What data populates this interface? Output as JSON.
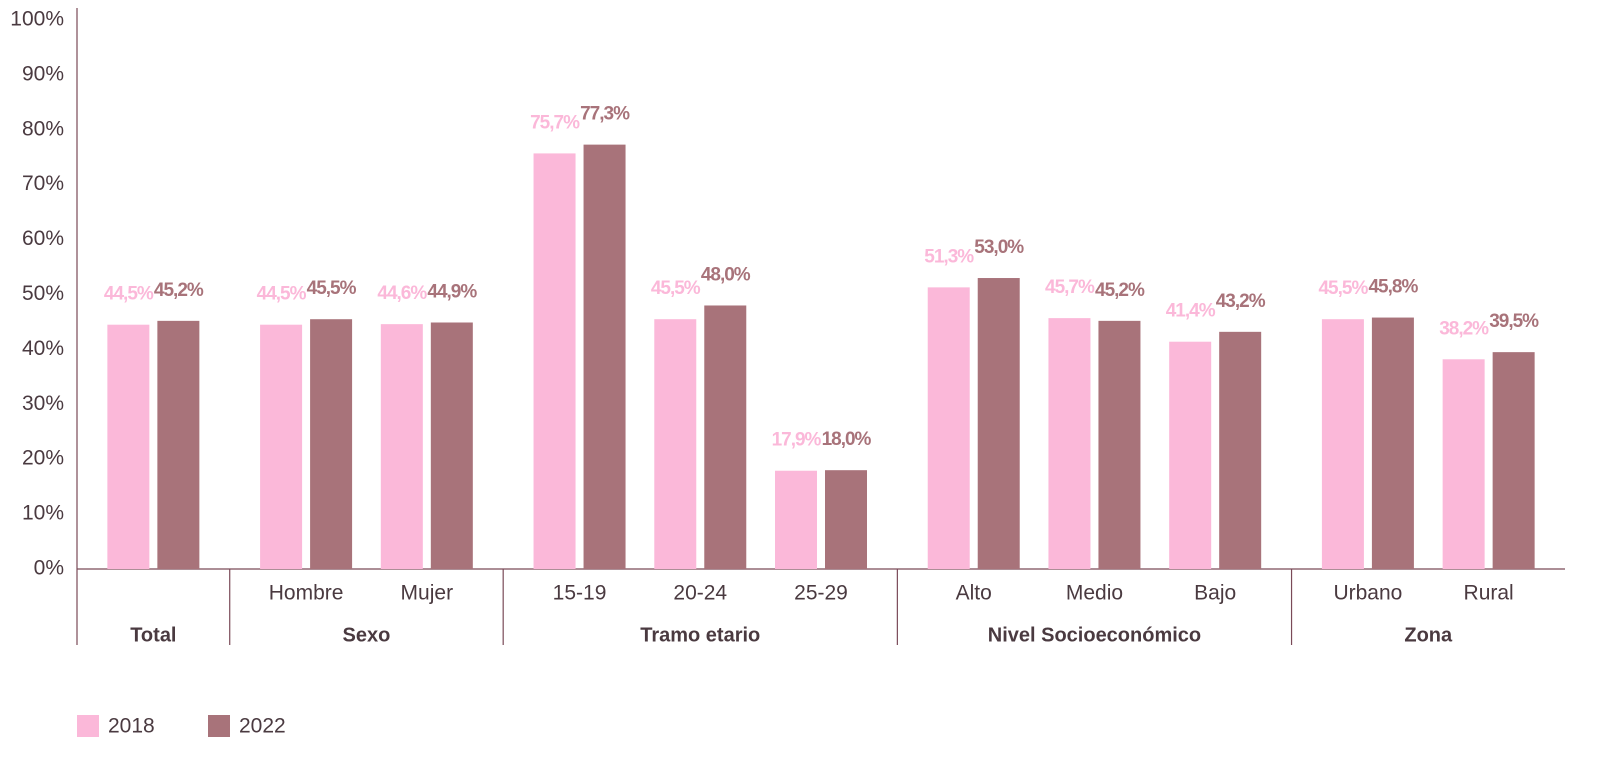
{
  "chart_data": {
    "type": "bar",
    "groups": [
      {
        "name": "Total",
        "categories": [
          null
        ]
      },
      {
        "name": "Sexo",
        "categories": [
          "Hombre",
          "Mujer"
        ]
      },
      {
        "name": "Tramo etario",
        "categories": [
          "15-19",
          "20-24",
          "25-29"
        ]
      },
      {
        "name": "Nivel Socioeconómico",
        "categories": [
          "Alto",
          "Medio",
          "Bajo"
        ]
      },
      {
        "name": "Zona",
        "categories": [
          "Urbano",
          "Rural"
        ]
      }
    ],
    "series": [
      {
        "name": "2018",
        "color": "#fbb8d9",
        "values": [
          44.5,
          44.5,
          44.6,
          75.7,
          45.5,
          17.9,
          51.3,
          45.7,
          41.4,
          45.5,
          38.2
        ],
        "value_labels": [
          "44,5%",
          "44,5%",
          "44,6%",
          "75,7%",
          "45,5%",
          "17,9%",
          "51,3%",
          "45,7%",
          "41,4%",
          "45,5%",
          "38,2%"
        ]
      },
      {
        "name": "2022",
        "color": "#a8737a",
        "values": [
          45.2,
          45.5,
          44.9,
          77.3,
          48.0,
          18.0,
          53.0,
          45.2,
          43.2,
          45.8,
          39.5
        ],
        "value_labels": [
          "45,2%",
          "45,5%",
          "44,9%",
          "77,3%",
          "48,0%",
          "18,0%",
          "53,0%",
          "45,2%",
          "43,2%",
          "45,8%",
          "39,5%"
        ]
      }
    ],
    "ylim": [
      0,
      100
    ],
    "yticks": [
      {
        "value": 0,
        "label": "0%"
      },
      {
        "value": 10,
        "label": "10%"
      },
      {
        "value": 20,
        "label": "20%"
      },
      {
        "value": 30,
        "label": "30%"
      },
      {
        "value": 40,
        "label": "40%"
      },
      {
        "value": 50,
        "label": "50%"
      },
      {
        "value": 60,
        "label": "60%"
      },
      {
        "value": 70,
        "label": "70%"
      },
      {
        "value": 80,
        "label": "80%"
      },
      {
        "value": 90,
        "label": "90%"
      },
      {
        "value": 100,
        "label": "100%"
      }
    ],
    "grid": false,
    "legend": "bottom-left"
  }
}
